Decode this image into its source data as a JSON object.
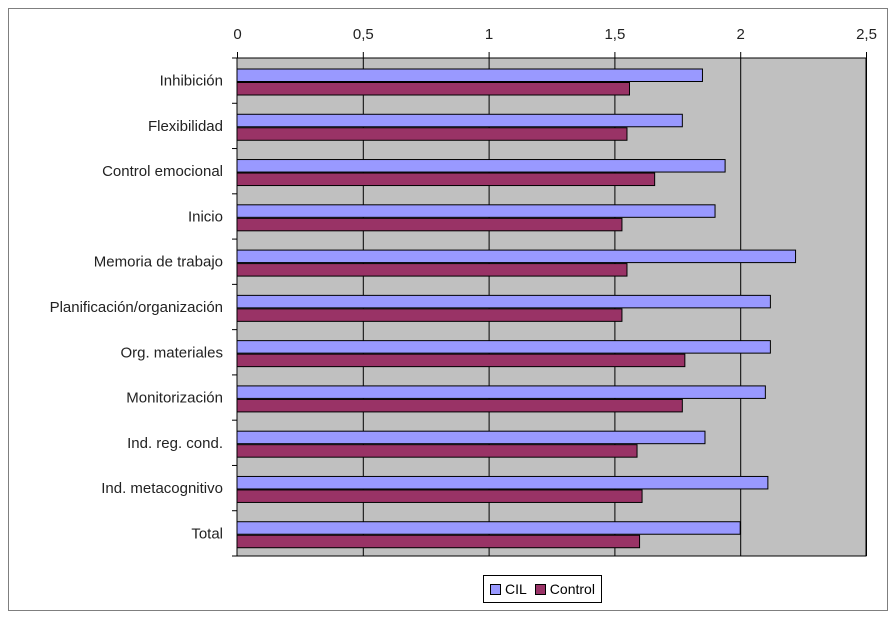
{
  "chart_data": {
    "type": "bar",
    "orientation": "horizontal",
    "categories": [
      "Inhibición",
      "Flexibilidad",
      "Control emocional",
      "Inicio",
      "Memoria de trabajo",
      "Planificación/organización",
      "Org. materiales",
      "Monitorización",
      "Ind. reg. cond.",
      "Ind. metacognitivo",
      "Total"
    ],
    "series": [
      {
        "name": "CIL",
        "color": "#9999ff",
        "values": [
          1.85,
          1.77,
          1.94,
          1.9,
          2.22,
          2.12,
          2.12,
          2.1,
          1.86,
          2.11,
          2.0
        ]
      },
      {
        "name": "Control",
        "color": "#993366",
        "values": [
          1.56,
          1.55,
          1.66,
          1.53,
          1.55,
          1.53,
          1.78,
          1.77,
          1.59,
          1.61,
          1.6
        ]
      }
    ],
    "xlim": [
      0,
      2.5
    ],
    "xticks": [
      "0",
      "0,5",
      "1",
      "1,5",
      "2",
      "2,5"
    ],
    "xtick_values": [
      0,
      0.5,
      1,
      1.5,
      2,
      2.5
    ],
    "axis_position": "top",
    "grid": true,
    "plot_background": "#c0c0c0",
    "legend_position": "bottom-center",
    "title": "",
    "xlabel": "",
    "ylabel": ""
  }
}
